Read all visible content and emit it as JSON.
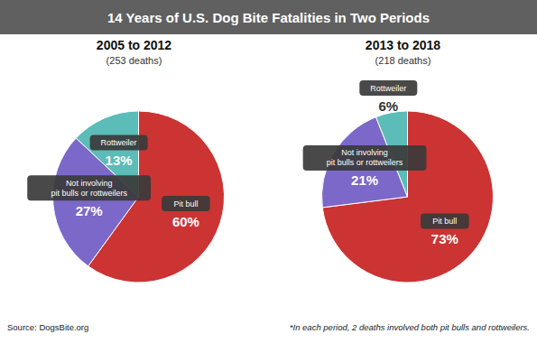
{
  "title": "14 Years of U.S. Dog Bite Fatalities in Two Periods",
  "annotations": [
    "Source: DogsBite.org",
    "*In each period, 2 deaths involved both pit bulls and rottweilers."
  ],
  "chart_data": [
    {
      "type": "pie",
      "title": "2005 to 2012",
      "subtitle": "(253 deaths)",
      "categories": [
        "Pit bull",
        "Not involving\npit bulls or rottweilers",
        "Rottweiler"
      ],
      "values": [
        60,
        27,
        13
      ],
      "value_labels": [
        "60%",
        "27%",
        "13%"
      ],
      "colors": [
        "#cc3333",
        "#7b68c8",
        "#5bbcb8"
      ],
      "data_labels": true
    },
    {
      "type": "pie",
      "title": "2013 to 2018",
      "subtitle": "(218 deaths)",
      "categories": [
        "Pit bull",
        "Not involving\npit bulls or rottweilers",
        "Rottweiler"
      ],
      "values": [
        73,
        21,
        6
      ],
      "value_labels": [
        "73%",
        "21%",
        "6%"
      ],
      "colors": [
        "#cc3333",
        "#7b68c8",
        "#5bbcb8"
      ],
      "data_labels": true
    }
  ]
}
